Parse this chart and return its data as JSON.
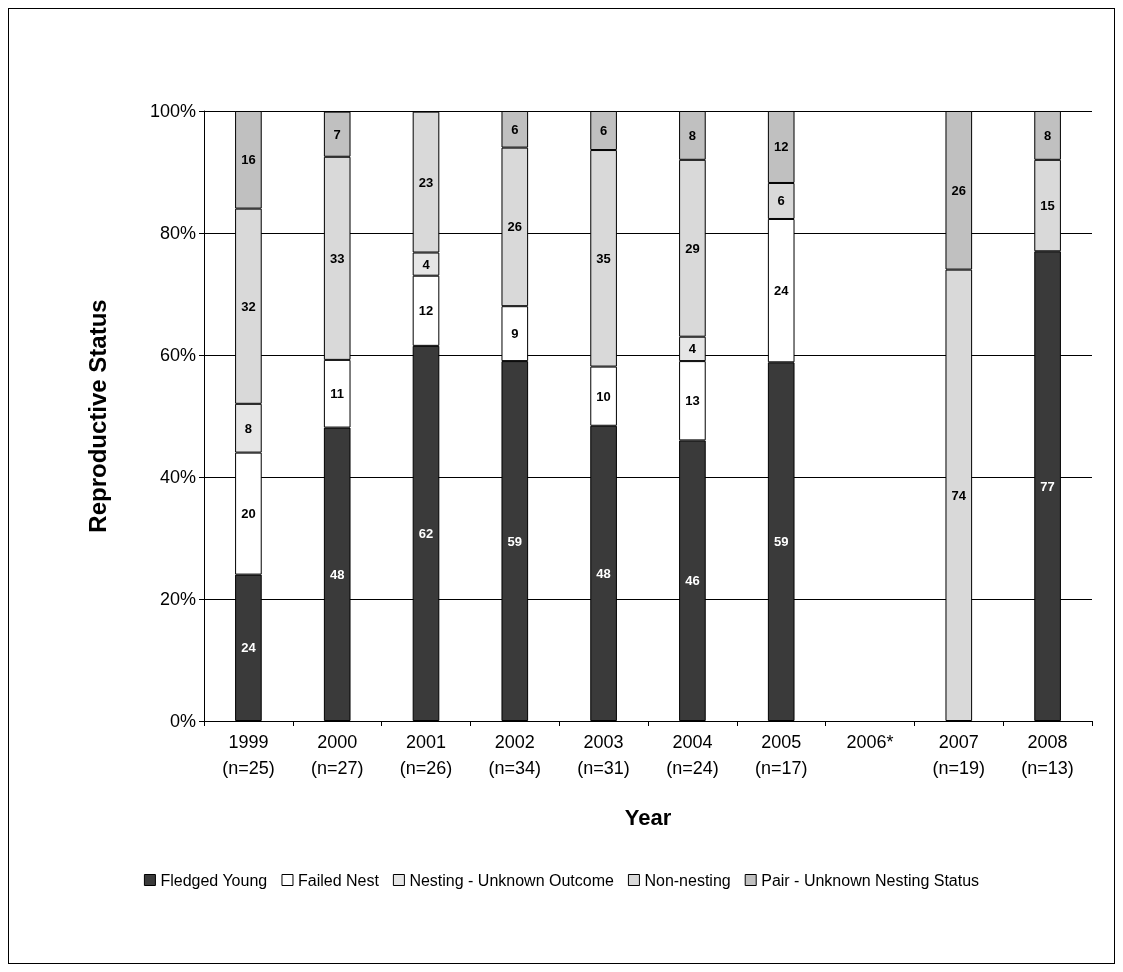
{
  "chart_data": {
    "type": "bar",
    "stacked": true,
    "xlabel": "Year",
    "ylabel": "Reproductive Status",
    "categories": [
      "1999\n(n=25)",
      "2000\n(n=27)",
      "2001\n(n=26)",
      "2002\n(n=34)",
      "2003\n(n=31)",
      "2004\n(n=24)",
      "2005\n(n=17)",
      "2006*",
      "2007\n(n=19)",
      "2008\n(n=13)"
    ],
    "series": [
      {
        "name": "Fledged Young",
        "color": "#3a3a3a",
        "values": [
          24,
          48.1,
          61.5,
          59,
          48.4,
          46,
          58.8,
          null,
          null,
          77
        ],
        "value_labels": [
          "24",
          "48",
          "62",
          "59",
          "48",
          "46",
          "59",
          null,
          null,
          "77"
        ]
      },
      {
        "name": "Failed Nest",
        "color": "#ffffff",
        "values": [
          20,
          11.1,
          11.5,
          9,
          9.7,
          13,
          23.5,
          null,
          null,
          null
        ],
        "value_labels": [
          "20",
          "11",
          "12",
          "9",
          "10",
          "13",
          "24",
          null,
          null,
          null
        ]
      },
      {
        "name": "Nesting - Unknown Outcome",
        "color": "#e6e6e6",
        "values": [
          8,
          null,
          3.8,
          null,
          null,
          4,
          null,
          null,
          null,
          null
        ],
        "value_labels": [
          "8",
          null,
          "4",
          null,
          null,
          "4",
          null,
          null,
          null,
          null
        ]
      },
      {
        "name": "Non-nesting",
        "color": "#d9d9d9",
        "values": [
          32,
          33.3,
          23.1,
          26,
          35.5,
          29,
          5.9,
          null,
          74,
          15
        ],
        "value_labels": [
          "32",
          "33",
          "23",
          "26",
          "35",
          "29",
          "6",
          null,
          "74",
          "15"
        ]
      },
      {
        "name": "Pair - Unknown Nesting Status",
        "color": "#c0c0c0",
        "values": [
          16,
          7.4,
          null,
          6,
          6.4,
          8,
          11.8,
          null,
          26,
          8
        ],
        "value_labels": [
          "16",
          "7",
          null,
          "6",
          "6",
          "8",
          "12",
          null,
          "26",
          "8"
        ]
      }
    ],
    "ylim": [
      0,
      100
    ],
    "yticks": [
      {
        "value": 0,
        "label": "0%"
      },
      {
        "value": 20,
        "label": "20%"
      },
      {
        "value": 40,
        "label": "40%"
      },
      {
        "value": 60,
        "label": "60%"
      },
      {
        "value": 80,
        "label": "80%"
      },
      {
        "value": 100,
        "label": "100%"
      }
    ],
    "grid": "y",
    "legend": "bottom"
  }
}
